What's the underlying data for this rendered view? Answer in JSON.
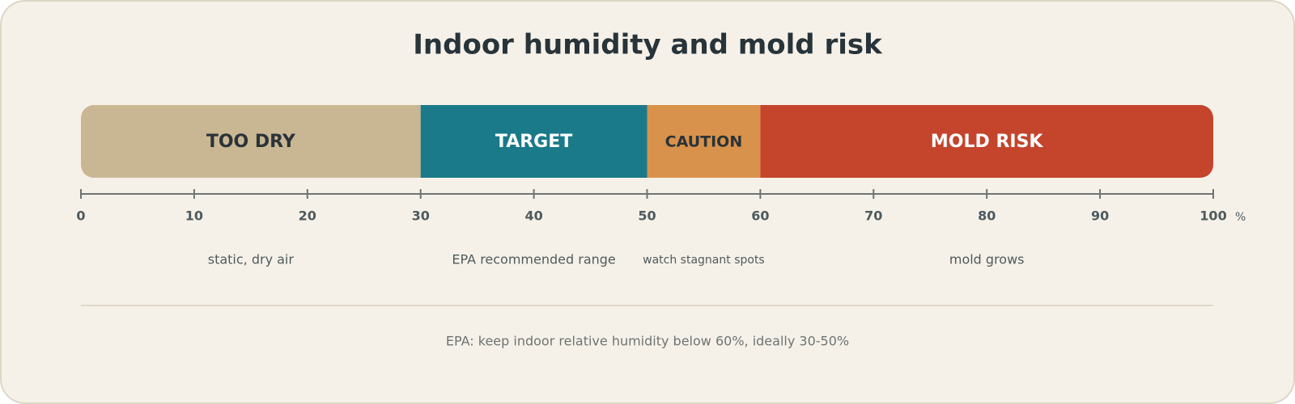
{
  "chart_data": {
    "type": "range-bar",
    "title": "Indoor humidity and mold risk",
    "xlim": [
      0,
      100
    ],
    "xticks": [
      0,
      10,
      20,
      30,
      40,
      50,
      60,
      70,
      80,
      90,
      100
    ],
    "x_unit": "%",
    "segments": [
      {
        "name": "TOO DRY",
        "from": 0,
        "to": 30,
        "color": "#c9b794",
        "label_color": "#2a3338",
        "note": "static, dry air"
      },
      {
        "name": "TARGET",
        "from": 30,
        "to": 50,
        "color": "#1a7a8a",
        "label_color": "#ffffff",
        "note": "EPA recommended range"
      },
      {
        "name": "CAUTION",
        "from": 50,
        "to": 60,
        "color": "#d9924b",
        "label_color": "#2a3338",
        "note": "watch stagnant spots"
      },
      {
        "name": "MOLD RISK",
        "from": 60,
        "to": 100,
        "color": "#c4452c",
        "label_color": "#ffffff",
        "note": "mold grows"
      }
    ],
    "footnote": "EPA: keep indoor relative humidity below 60%, ideally 30-50%"
  }
}
